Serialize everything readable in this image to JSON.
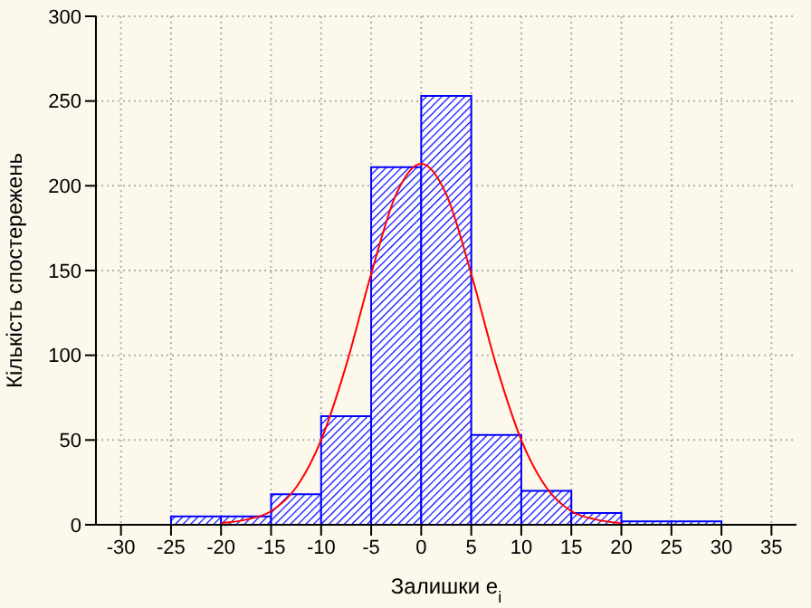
{
  "chart_data": {
    "type": "histogram",
    "xlabel": "Залишки e$_{i}$",
    "ylabel": "Кількість спостережень",
    "bins": [
      -25,
      -20,
      -15,
      -10,
      -5,
      0,
      5,
      10,
      15,
      20,
      25,
      30
    ],
    "values": [
      5,
      5,
      18,
      64,
      211,
      253,
      53,
      20,
      7,
      2,
      2
    ],
    "color": "#0000ff",
    "series": [
      {
        "type": "line",
        "color": "#ff0000",
        "x": [
          -20,
          -17.5,
          -15,
          -12.5,
          -10,
          -7.5,
          -5,
          -2.5,
          0,
          2.5,
          5,
          7.5,
          10,
          12.5,
          15,
          17.5,
          20
        ],
        "values": [
          1,
          3,
          8,
          22,
          50,
          94,
          148,
          195,
          213,
          195,
          148,
          94,
          50,
          22,
          8,
          3,
          1
        ]
      }
    ],
    "xlim": [
      -32.5,
      37.5
    ],
    "xticks": [
      -30,
      -25,
      -20,
      -15,
      -10,
      -5,
      0,
      5,
      10,
      15,
      20,
      25,
      30,
      35
    ],
    "ylim": [
      0,
      300
    ],
    "yticks": [
      0,
      50,
      100,
      150,
      200,
      250,
      300
    ],
    "grid": true
  }
}
